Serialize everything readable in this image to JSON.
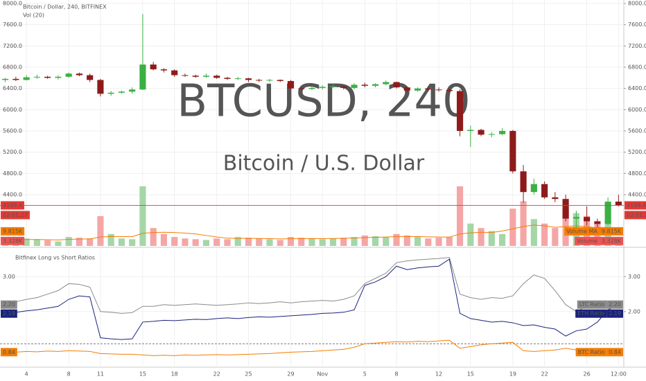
{
  "chart_data": [
    {
      "type": "candlestick",
      "title": "Bitcoin / Dollar, 240, BITFINEX",
      "indicator_title": "Vol (20)",
      "watermark": "BTCUSD, 240",
      "watermark_subtitle": "Bitcoin / U.S. Dollar",
      "countdown": "02:01:27",
      "categories": [
        null,
        null,
        "4",
        null,
        null,
        null,
        "8",
        null,
        null,
        "11",
        null,
        null,
        null,
        "15",
        null,
        null,
        "18",
        null,
        null,
        null,
        "22",
        null,
        null,
        "25",
        null,
        null,
        null,
        "29",
        null,
        null,
        "Nov",
        null,
        null,
        null,
        "5",
        null,
        null,
        "8",
        null,
        null,
        null,
        "12",
        null,
        null,
        "15",
        null,
        null,
        null,
        "19",
        null,
        null,
        "22",
        null,
        null,
        null,
        "26",
        null,
        null,
        "12:00"
      ],
      "open": [
        6560,
        6580,
        6560,
        6610,
        6620,
        6600,
        6620,
        6680,
        6650,
        6560,
        6300,
        6320,
        6340,
        6380,
        6850,
        6760,
        6740,
        6650,
        6640,
        6620,
        6640,
        6600,
        6580,
        6590,
        6560,
        6550,
        6560,
        6540,
        6400,
        6390,
        6410,
        6430,
        6440,
        6410,
        6470,
        6450,
        6480,
        6520,
        6420,
        6360,
        6400,
        6380,
        6370,
        6350,
        5600,
        5620,
        5530,
        5540,
        5600,
        4840,
        4450,
        4600,
        4350,
        4320,
        3950,
        3980,
        3900,
        3850,
        4270
      ],
      "high": [
        6600,
        6620,
        6650,
        6660,
        6640,
        6650,
        6700,
        6700,
        6680,
        6580,
        6350,
        6360,
        6420,
        7800,
        6900,
        6780,
        6760,
        6680,
        6660,
        6680,
        6660,
        6620,
        6620,
        6600,
        6580,
        6580,
        6570,
        6560,
        6420,
        6440,
        6460,
        6480,
        6460,
        6500,
        6510,
        6500,
        6550,
        6530,
        6440,
        6420,
        6420,
        6420,
        6390,
        6380,
        5700,
        5640,
        5580,
        5650,
        5620,
        4960,
        4700,
        4650,
        4450,
        4400,
        4100,
        4180,
        3950,
        4350,
        4400
      ],
      "low": [
        6520,
        6540,
        6550,
        6580,
        6580,
        6570,
        6600,
        6630,
        6520,
        6250,
        6260,
        6300,
        6300,
        6370,
        6740,
        6700,
        6620,
        6620,
        6600,
        6600,
        6580,
        6560,
        6560,
        6520,
        6520,
        6520,
        6520,
        6380,
        6360,
        6370,
        6380,
        6410,
        6380,
        6380,
        6420,
        6420,
        6460,
        6400,
        6330,
        6340,
        6350,
        6340,
        6330,
        5500,
        5300,
        5500,
        5480,
        5520,
        4800,
        4250,
        4400,
        4320,
        4260,
        3900,
        3650,
        3820,
        3700,
        3830,
        4180
      ],
      "close": [
        6580,
        6560,
        6610,
        6620,
        6600,
        6620,
        6680,
        6650,
        6560,
        6300,
        6320,
        6340,
        6380,
        6850,
        6760,
        6740,
        6650,
        6640,
        6620,
        6640,
        6600,
        6580,
        6590,
        6560,
        6550,
        6560,
        6540,
        6400,
        6390,
        6410,
        6430,
        6440,
        6410,
        6470,
        6450,
        6480,
        6520,
        6420,
        6360,
        6400,
        6380,
        6370,
        6350,
        5600,
        5620,
        5530,
        5540,
        5600,
        4840,
        4450,
        4600,
        4350,
        4320,
        3950,
        3980,
        3900,
        3850,
        4270,
        4199.4
      ],
      "up_color": "#3cb043",
      "down_color": "#8e1b1b",
      "ylim": [
        3436,
        8065
      ],
      "yticks": [
        {
          "value": 8000,
          "label": "8000.0"
        },
        {
          "value": 7600,
          "label": "7600.0"
        },
        {
          "value": 7200,
          "label": "7200.0"
        },
        {
          "value": 6800,
          "label": "6800.0"
        },
        {
          "value": 6400,
          "label": "6400.0"
        },
        {
          "value": 6000,
          "label": "6000.0"
        },
        {
          "value": 5600,
          "label": "5600.0"
        },
        {
          "value": 5200,
          "label": "5200.0"
        },
        {
          "value": 4800,
          "label": "4800.0"
        },
        {
          "value": 4400,
          "label": "4400.0"
        }
      ],
      "grid": true,
      "volume_lim": [
        0,
        165000
      ],
      "volume": {
        "name": "Volume",
        "up_color": "#a5d6a7",
        "down_color": "#f4a6a6",
        "values": [
          4000,
          3500,
          5000,
          4500,
          3800,
          3000,
          6000,
          5500,
          5000,
          20000,
          8000,
          5000,
          4500,
          40000,
          12000,
          8000,
          6000,
          5000,
          4500,
          4000,
          5000,
          4500,
          6000,
          5500,
          5000,
          4500,
          4000,
          6000,
          5500,
          5000,
          4500,
          5000,
          5500,
          6000,
          7000,
          6500,
          6000,
          8000,
          7000,
          6000,
          5000,
          5500,
          6000,
          40000,
          15000,
          12000,
          10000,
          8000,
          25000,
          30000,
          18000,
          15000,
          12000,
          25000,
          22000,
          20000,
          15000,
          18000,
          3328
        ],
        "value_labels": [
          null,
          null,
          null,
          null,
          null,
          null,
          null,
          null,
          null,
          null,
          null,
          null,
          null,
          null,
          null,
          null,
          null,
          null,
          null,
          null,
          null,
          null,
          null,
          null,
          null,
          null,
          null,
          null,
          null,
          null,
          null,
          null,
          null,
          null,
          null,
          null,
          null,
          null,
          null,
          null,
          null,
          null,
          null,
          null,
          null,
          null,
          null,
          null,
          null,
          null,
          null,
          null,
          null,
          null,
          null,
          null,
          null,
          null,
          "3.328K"
        ]
      },
      "volume_ma": {
        "name": "Volume MA",
        "color": "#f57c00",
        "values": [
          4200,
          4100,
          4300,
          4300,
          4200,
          4000,
          4400,
          4600,
          4700,
          6000,
          6400,
          6300,
          6200,
          8500,
          9000,
          9200,
          9000,
          8600,
          8000,
          7000,
          6000,
          5200,
          5000,
          5100,
          5000,
          4900,
          4700,
          4800,
          4900,
          5000,
          4900,
          5000,
          5100,
          5300,
          5600,
          5800,
          6000,
          6300,
          6400,
          6300,
          6100,
          6000,
          5900,
          8000,
          8800,
          9200,
          9000,
          10000,
          11500,
          13000,
          14000,
          13500,
          12500,
          13000,
          13500,
          13000,
          12000,
          11000,
          9815
        ],
        "value_labels": [
          null,
          null,
          null,
          null,
          null,
          null,
          null,
          null,
          null,
          null,
          null,
          null,
          null,
          null,
          null,
          null,
          null,
          null,
          null,
          null,
          null,
          null,
          null,
          null,
          null,
          null,
          null,
          null,
          null,
          null,
          null,
          null,
          null,
          null,
          null,
          null,
          null,
          null,
          null,
          null,
          null,
          null,
          null,
          null,
          null,
          null,
          null,
          null,
          null,
          null,
          null,
          null,
          null,
          null,
          null,
          null,
          null,
          null,
          "9.815K"
        ]
      }
    },
    {
      "type": "line",
      "title": "Bitfinex Long vs Short Ratios",
      "ylim": [
        0.45,
        3.78
      ],
      "yticks": [
        {
          "value": 3,
          "label": "3.00"
        },
        {
          "value": 2,
          "label": "2.00"
        }
      ],
      "reference_line": 1.08,
      "grid": true,
      "series": [
        {
          "name": "LTC Ratio",
          "color": "#8a8a8a",
          "values": [
            2.3,
            2.28,
            2.35,
            2.4,
            2.5,
            2.6,
            2.8,
            2.78,
            2.7,
            2.0,
            1.98,
            1.95,
            1.97,
            2.15,
            2.15,
            2.2,
            2.18,
            2.2,
            2.22,
            2.2,
            2.18,
            2.2,
            2.22,
            2.25,
            2.23,
            2.25,
            2.28,
            2.25,
            2.28,
            2.3,
            2.32,
            2.3,
            2.35,
            2.45,
            2.8,
            2.95,
            3.1,
            3.4,
            3.45,
            3.48,
            3.5,
            3.52,
            3.55,
            2.5,
            2.4,
            2.35,
            2.4,
            2.38,
            2.45,
            2.8,
            3.05,
            2.95,
            2.6,
            2.2,
            2.0,
            2.15,
            2.1,
            2.25,
            2.2
          ],
          "value_labels": [
            null,
            null,
            null,
            null,
            null,
            null,
            null,
            null,
            null,
            null,
            null,
            null,
            null,
            null,
            null,
            null,
            null,
            null,
            null,
            null,
            null,
            null,
            null,
            null,
            null,
            null,
            null,
            null,
            null,
            null,
            null,
            null,
            null,
            null,
            null,
            null,
            null,
            null,
            null,
            null,
            null,
            null,
            null,
            null,
            null,
            null,
            null,
            null,
            null,
            null,
            null,
            null,
            null,
            null,
            null,
            null,
            null,
            null,
            "2.20"
          ]
        },
        {
          "name": "ETH Ratio",
          "color": "#1a237e",
          "values": [
            2.0,
            1.98,
            2.02,
            2.05,
            2.1,
            2.15,
            2.35,
            2.45,
            2.42,
            1.25,
            1.22,
            1.2,
            1.22,
            1.7,
            1.72,
            1.75,
            1.74,
            1.76,
            1.78,
            1.77,
            1.8,
            1.82,
            1.8,
            1.83,
            1.85,
            1.84,
            1.86,
            1.88,
            1.9,
            1.92,
            1.95,
            1.96,
            1.98,
            2.05,
            2.75,
            2.85,
            3.0,
            3.3,
            3.2,
            3.25,
            3.28,
            3.3,
            3.5,
            1.95,
            1.8,
            1.75,
            1.7,
            1.72,
            1.68,
            1.6,
            1.62,
            1.55,
            1.5,
            1.3,
            1.45,
            1.5,
            1.7,
            2.05,
            2.19
          ],
          "value_labels": [
            null,
            null,
            null,
            null,
            null,
            null,
            null,
            null,
            null,
            null,
            null,
            null,
            null,
            null,
            null,
            null,
            null,
            null,
            null,
            null,
            null,
            null,
            null,
            null,
            null,
            null,
            null,
            null,
            null,
            null,
            null,
            null,
            null,
            null,
            null,
            null,
            null,
            null,
            null,
            null,
            null,
            null,
            null,
            null,
            null,
            null,
            null,
            null,
            null,
            null,
            null,
            null,
            null,
            null,
            null,
            null,
            null,
            null,
            "2.19"
          ]
        },
        {
          "name": "BTC Ratio",
          "color": "#f57c00",
          "values": [
            0.85,
            0.84,
            0.86,
            0.85,
            0.87,
            0.86,
            0.88,
            0.87,
            0.86,
            0.8,
            0.79,
            0.78,
            0.78,
            0.76,
            0.74,
            0.75,
            0.74,
            0.76,
            0.75,
            0.76,
            0.77,
            0.76,
            0.77,
            0.78,
            0.79,
            0.8,
            0.82,
            0.84,
            0.85,
            0.86,
            0.88,
            0.9,
            0.92,
            0.98,
            1.08,
            1.1,
            1.12,
            1.14,
            1.13,
            1.15,
            1.14,
            1.16,
            1.18,
            0.95,
            1.0,
            1.05,
            1.08,
            1.1,
            1.12,
            0.88,
            0.86,
            0.88,
            0.9,
            0.95,
            0.9,
            0.88,
            0.86,
            0.85,
            0.84
          ],
          "value_labels": [
            null,
            null,
            null,
            null,
            null,
            null,
            null,
            null,
            null,
            null,
            null,
            null,
            null,
            null,
            null,
            null,
            null,
            null,
            null,
            null,
            null,
            null,
            null,
            null,
            null,
            null,
            null,
            null,
            null,
            null,
            null,
            null,
            null,
            null,
            null,
            null,
            null,
            null,
            null,
            null,
            null,
            null,
            null,
            null,
            null,
            null,
            null,
            null,
            null,
            null,
            null,
            null,
            null,
            null,
            null,
            null,
            null,
            null,
            "0.84"
          ]
        }
      ]
    }
  ]
}
